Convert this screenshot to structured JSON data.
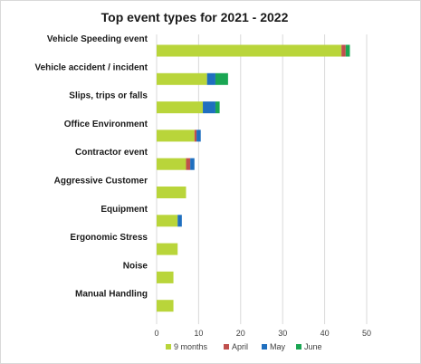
{
  "chart_data": {
    "type": "bar",
    "orientation": "horizontal",
    "stacked": true,
    "title": "Top event types for 2021 - 2022",
    "categories": [
      "Vehicle Speeding event",
      "Vehicle accident / incident",
      "Slips, trips or falls",
      "Office Environment",
      "Contractor event",
      "Aggressive Customer",
      "Equipment",
      "Ergonomic Stress",
      "Noise",
      "Manual Handling"
    ],
    "series": [
      {
        "name": "9 months",
        "color": "#b9d53a",
        "values": [
          44,
          12,
          11,
          9,
          7,
          7,
          5,
          5,
          4,
          4
        ]
      },
      {
        "name": "April",
        "color": "#c0504d",
        "values": [
          1,
          0,
          0,
          0.5,
          1,
          0,
          0,
          0,
          0,
          0
        ]
      },
      {
        "name": "May",
        "color": "#1f6fbf",
        "values": [
          0,
          2,
          3,
          1,
          1,
          0,
          1,
          0,
          0,
          0
        ]
      },
      {
        "name": "June",
        "color": "#1aa653",
        "values": [
          1,
          3,
          1,
          0,
          0,
          0,
          0,
          0,
          0,
          0
        ]
      }
    ],
    "xlim": [
      0,
      50
    ],
    "xticks": [
      0,
      10,
      20,
      30,
      40,
      50
    ],
    "grid": "vertical",
    "legend": "bottom"
  }
}
